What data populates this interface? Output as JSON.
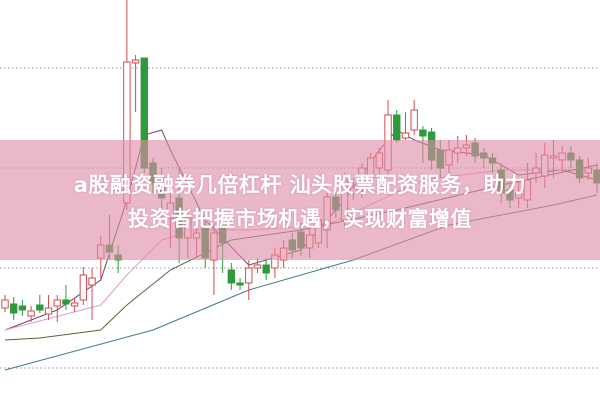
{
  "headline": {
    "line1": "a股融资融券几倍杠杆 汕头股票配资服务，助力",
    "line2": "投资者把握市场机遇，实现财富增值"
  },
  "colors": {
    "up": "#d64a50",
    "down": "#2f9a3c",
    "banner": "#e8b0c2",
    "grid": "#9a9a9a",
    "ma_short": "#6b4a6a",
    "ma_mid": "#e49ad2",
    "ma_long": "#4f6a3a",
    "ma_longest": "#3f7b8c"
  },
  "chart_data": {
    "type": "candlestick",
    "ylim": [
      -33,
      368
    ],
    "grid": "horizontal dotted",
    "gridlines": [
      0,
      100,
      200,
      300
    ],
    "candles": [
      [
        60,
        68,
        73,
        56
      ],
      [
        64,
        55,
        71,
        48
      ],
      [
        62,
        58,
        68,
        52
      ],
      [
        52,
        57,
        62,
        46
      ],
      [
        63,
        58,
        73,
        55
      ],
      [
        54,
        60,
        73,
        48
      ],
      [
        62,
        68,
        73,
        46
      ],
      [
        68,
        64,
        83,
        58
      ],
      [
        62,
        65,
        70,
        56
      ],
      [
        68,
        93,
        101,
        63
      ],
      [
        83,
        90,
        100,
        48
      ],
      [
        110,
        123,
        132,
        88
      ],
      [
        123,
        116,
        153,
        108
      ],
      [
        113,
        108,
        123,
        95
      ],
      [
        165,
        306,
        368,
        158
      ],
      [
        305,
        308,
        313,
        256
      ],
      [
        310,
        200,
        310,
        195
      ],
      [
        205,
        185,
        210,
        175
      ],
      [
        190,
        170,
        200,
        150
      ],
      [
        150,
        165,
        175,
        120
      ],
      [
        170,
        130,
        200,
        105
      ],
      [
        130,
        150,
        160,
        110
      ],
      [
        130,
        135,
        145,
        110
      ],
      [
        140,
        110,
        150,
        100
      ],
      [
        108,
        135,
        145,
        73
      ],
      [
        140,
        125,
        150,
        95
      ],
      [
        98,
        85,
        105,
        78
      ],
      [
        85,
        83,
        90,
        78
      ],
      [
        85,
        100,
        108,
        68
      ],
      [
        100,
        103,
        110,
        95
      ],
      [
        103,
        95,
        110,
        88
      ],
      [
        100,
        113,
        120,
        90
      ],
      [
        108,
        120,
        128,
        100
      ],
      [
        128,
        118,
        135,
        110
      ],
      [
        136,
        120,
        145,
        112
      ],
      [
        120,
        133,
        140,
        110
      ],
      [
        125,
        148,
        158,
        120
      ],
      [
        138,
        171,
        175,
        120
      ],
      [
        171,
        158,
        178,
        150
      ],
      [
        148,
        188,
        195,
        140
      ],
      [
        175,
        180,
        190,
        168
      ],
      [
        178,
        200,
        205,
        170
      ],
      [
        190,
        210,
        215,
        182
      ],
      [
        200,
        215,
        220,
        190
      ],
      [
        198,
        253,
        268,
        193
      ],
      [
        253,
        228,
        258,
        225
      ],
      [
        230,
        235,
        256,
        228
      ],
      [
        238,
        258,
        268,
        233
      ],
      [
        238,
        232,
        242,
        205
      ],
      [
        236,
        208,
        240,
        198
      ],
      [
        218,
        200,
        228,
        190
      ],
      [
        203,
        218,
        228,
        195
      ],
      [
        215,
        220,
        232,
        205
      ],
      [
        220,
        223,
        233,
        212
      ],
      [
        225,
        212,
        230,
        205
      ],
      [
        215,
        210,
        220,
        200
      ],
      [
        210,
        205,
        215,
        195
      ],
      [
        198,
        175,
        205,
        165
      ],
      [
        178,
        168,
        185,
        160
      ],
      [
        170,
        175,
        190,
        160
      ],
      [
        168,
        188,
        205,
        160
      ],
      [
        195,
        200,
        215,
        185
      ],
      [
        192,
        213,
        225,
        180
      ],
      [
        210,
        212,
        228,
        190
      ],
      [
        208,
        215,
        222,
        195
      ],
      [
        215,
        208,
        222,
        200
      ],
      [
        208,
        190,
        212,
        185
      ],
      [
        195,
        200,
        210,
        188
      ],
      [
        198,
        185,
        205,
        175
      ]
    ],
    "moving_averages": [
      {
        "color_key": "ma_short",
        "points": [
          [
            0,
            38
          ],
          [
            6,
            58
          ],
          [
            11,
            88
          ],
          [
            14,
            168
          ],
          [
            16,
            233
          ],
          [
            18,
            238
          ],
          [
            19,
            218
          ],
          [
            23,
            148
          ],
          [
            28,
            103
          ],
          [
            34,
            118
          ],
          [
            39,
            168
          ],
          [
            43,
            218
          ],
          [
            45,
            238
          ],
          [
            47,
            228
          ],
          [
            50,
            218
          ],
          [
            55,
            213
          ],
          [
            59,
            193
          ],
          [
            64,
            198
          ],
          [
            68,
            188
          ]
        ]
      },
      {
        "color_key": "ma_mid",
        "points": [
          [
            0,
            38
          ],
          [
            11,
            63
          ],
          [
            14,
            93
          ],
          [
            18,
            128
          ],
          [
            22,
            138
          ],
          [
            28,
            138
          ],
          [
            37,
            143
          ],
          [
            48,
            188
          ],
          [
            57,
            198
          ],
          [
            68,
            198
          ]
        ]
      },
      {
        "color_key": "ma_long",
        "points": [
          [
            0,
            28
          ],
          [
            4,
            30
          ],
          [
            11,
            38
          ],
          [
            14,
            63
          ],
          [
            19,
            98
          ],
          [
            26,
            128
          ],
          [
            34,
            138
          ],
          [
            45,
            158
          ],
          [
            57,
            183
          ],
          [
            68,
            203
          ]
        ]
      },
      {
        "color_key": "ma_longest",
        "points": [
          [
            0,
            -2
          ],
          [
            17,
            38
          ],
          [
            28,
            78
          ],
          [
            40,
            108
          ],
          [
            51,
            143
          ],
          [
            63,
            163
          ],
          [
            68,
            173
          ]
        ]
      }
    ]
  }
}
